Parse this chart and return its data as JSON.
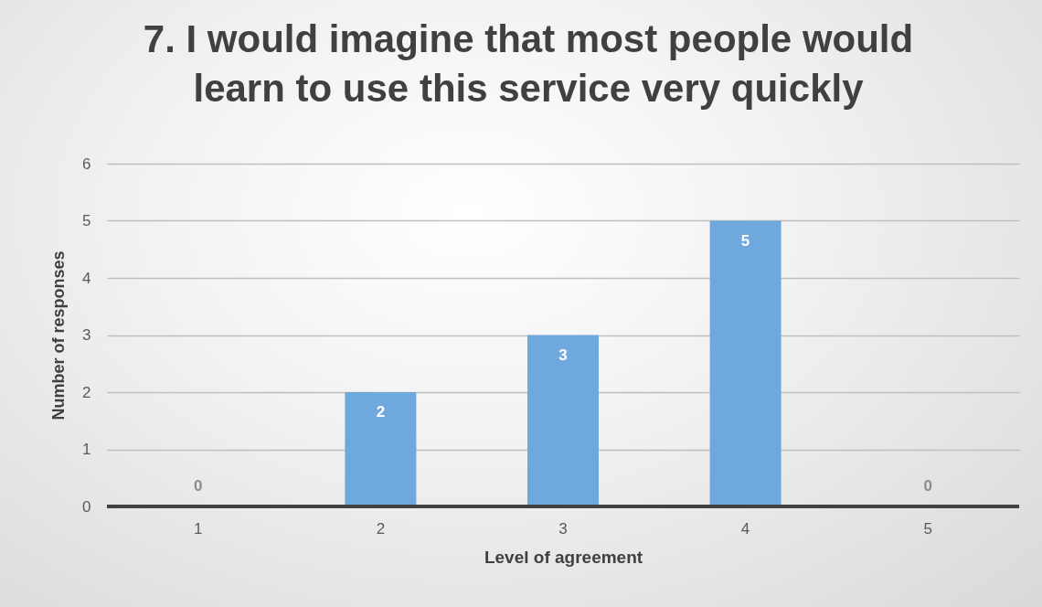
{
  "chart_data": {
    "type": "bar",
    "title": "7. I would imagine that most people would learn to use this service very quickly",
    "xlabel": "Level of agreement",
    "ylabel": "Number of responses",
    "categories": [
      "1",
      "2",
      "3",
      "4",
      "5"
    ],
    "values": [
      0,
      2,
      3,
      5,
      0
    ],
    "color": "#6fa8dc",
    "ylim": [
      0,
      6
    ],
    "yticks": [
      0,
      1,
      2,
      3,
      4,
      5,
      6
    ],
    "grid": "y",
    "data_labels": true
  }
}
